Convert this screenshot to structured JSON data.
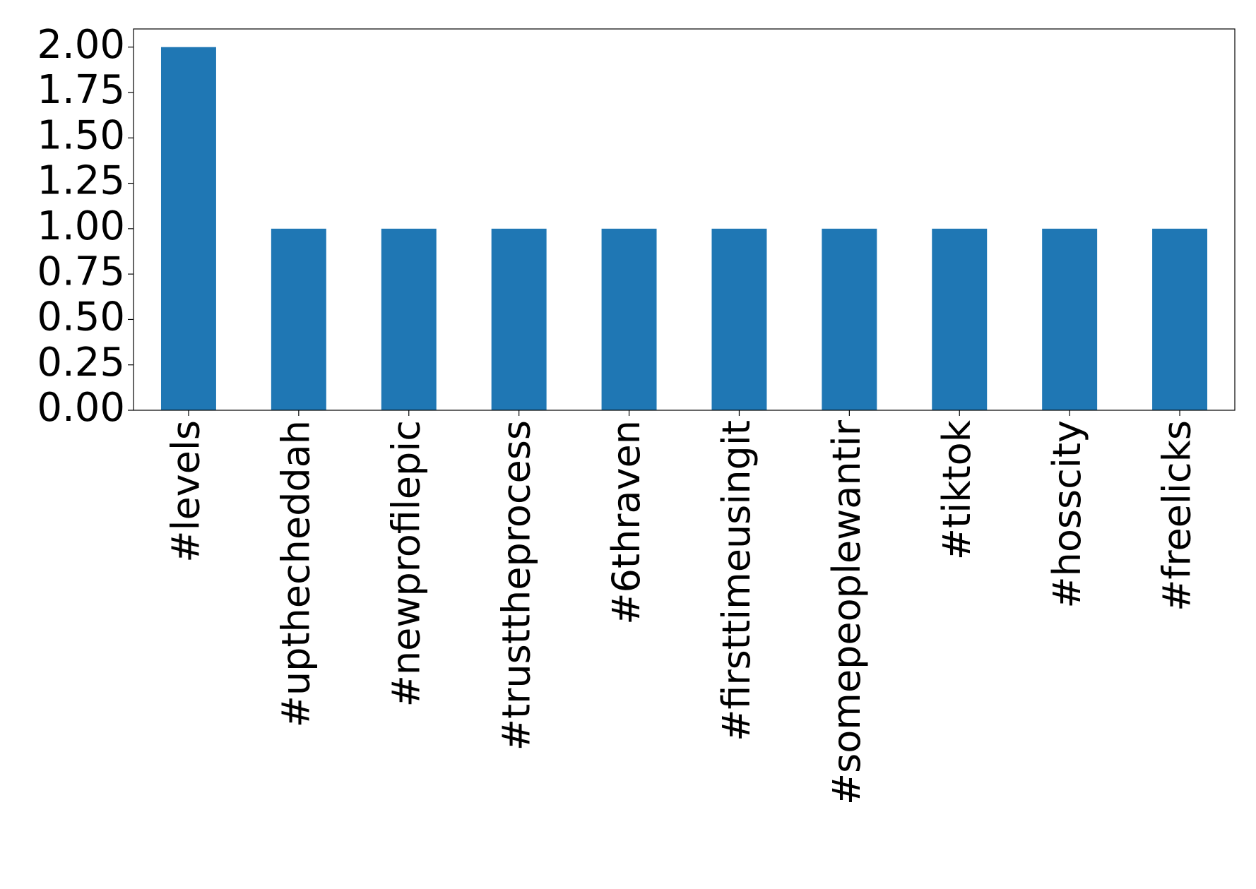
{
  "chart_data": {
    "type": "bar",
    "categories": [
      "#levels",
      "#upthecheddah",
      "#newprofilepic",
      "#trusttheprocess",
      "#6thraven",
      "#firsttimeusingit",
      "#somepeoplewantir",
      "#tiktok",
      "#hosscity",
      "#freelicks"
    ],
    "values": [
      2,
      1,
      1,
      1,
      1,
      1,
      1,
      1,
      1,
      1
    ],
    "color": "#1f77b4",
    "ylim": [
      0,
      2.1
    ],
    "yticks": [
      {
        "value": 0,
        "label": "0.00"
      },
      {
        "value": 0.25,
        "label": "0.25"
      },
      {
        "value": 0.5,
        "label": "0.50"
      },
      {
        "value": 0.75,
        "label": "0.75"
      },
      {
        "value": 1,
        "label": "1.00"
      },
      {
        "value": 1.25,
        "label": "1.25"
      },
      {
        "value": 1.5,
        "label": "1.50"
      },
      {
        "value": 1.75,
        "label": "1.75"
      },
      {
        "value": 2,
        "label": "2.00"
      }
    ],
    "grid": false
  }
}
